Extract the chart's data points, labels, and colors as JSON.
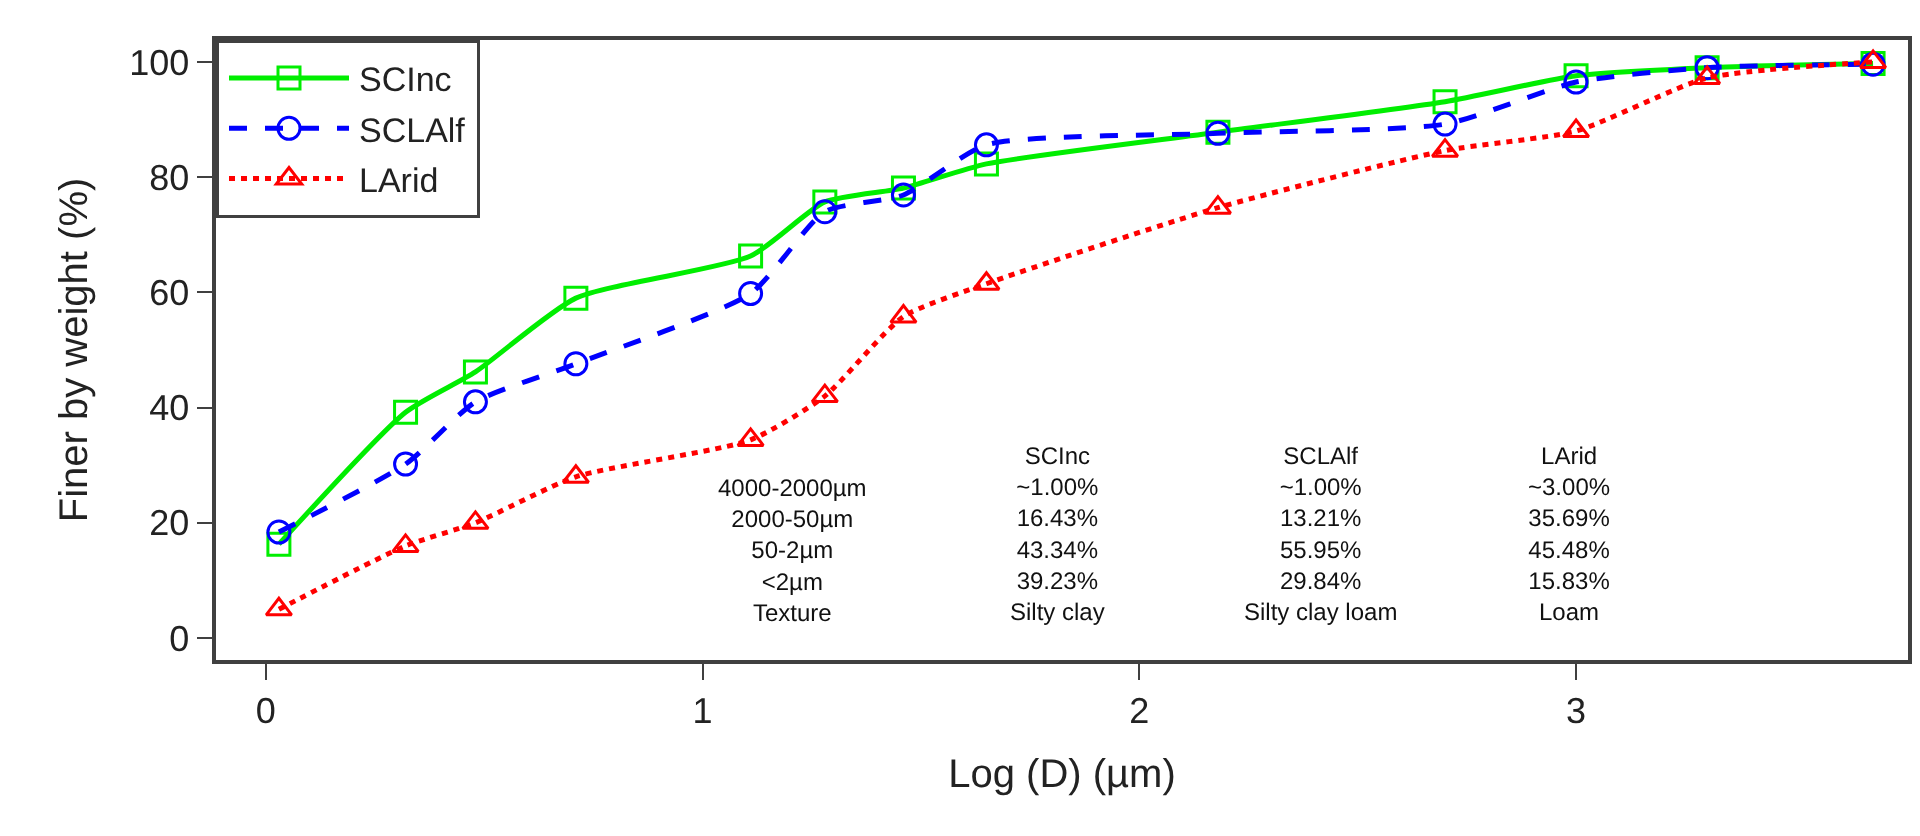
{
  "chart_data": {
    "type": "line",
    "xlabel": "Log (D) (µm)",
    "ylabel": "Finer by weight (%)",
    "x": [
      0.03,
      0.32,
      0.48,
      0.71,
      1.11,
      1.28,
      1.46,
      1.65,
      2.18,
      2.7,
      3.0,
      3.3,
      3.68
    ],
    "series": [
      {
        "name": "SCInc",
        "color": "#00ee00",
        "line_style": "solid",
        "marker": "square",
        "values": [
          16.3,
          39.2,
          46.2,
          59,
          66.3,
          75.7,
          78.1,
          82.3,
          87.8,
          93.1,
          97.6,
          99,
          99.7
        ]
      },
      {
        "name": "SCLAlf",
        "color": "#0000ff",
        "line_style": "dashed",
        "marker": "circle",
        "values": [
          18.4,
          30.2,
          41,
          47.6,
          59.8,
          74,
          76.9,
          85.6,
          87.6,
          89.2,
          96.5,
          99,
          99.6
        ]
      },
      {
        "name": "LArid",
        "color": "#ff0000",
        "line_style": "dotted",
        "marker": "triangle",
        "values": [
          5,
          16,
          20,
          28,
          34.4,
          42,
          55.8,
          61.5,
          74.7,
          84.6,
          88,
          97.2,
          100
        ]
      }
    ],
    "xlim": [
      -0.114,
      3.76
    ],
    "ylim": [
      -3.8,
      103.8
    ],
    "xticks": [
      0,
      1,
      2,
      3
    ],
    "yticks": [
      0,
      20,
      40,
      60,
      80,
      100
    ],
    "legend": "top left",
    "annotations": [
      "4000-2000µm\n2000-50µm\n50-2µm\n<2µm\nTexture",
      "SCInc\n~1.00%\n16.43%\n43.34%\n39.23%\nSilty clay",
      "SCLAlf\n~1.00%\n13.21%\n55.95%\n29.84%\nSilty clay loam",
      "LArid\n~3.00%\n35.69%\n45.48%\n15.83%\nLoam"
    ]
  }
}
